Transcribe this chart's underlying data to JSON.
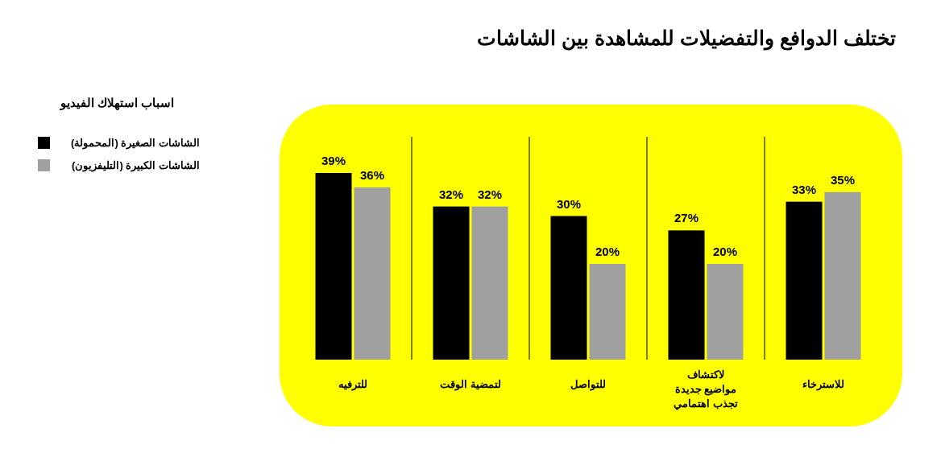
{
  "chart_data": {
    "type": "bar",
    "title": "تختلف الدوافع والتفضيلات للمشاهدة بين الشاشات",
    "legend_title": "اسباب استهلاك الفيديو",
    "legend": "top left",
    "categories": [
      "للترفيه",
      "لتمضية الوقت",
      "للتواصل",
      "لاكتشاف مواضيع جديدة تجذب اهتمامي",
      "للاسترخاء"
    ],
    "series": [
      {
        "name": "الشاشات الصغيرة (المحمولة)",
        "color": "#000000",
        "values": [
          39,
          32,
          30,
          27,
          33
        ],
        "value_labels": [
          "39%",
          "32%",
          "30%",
          "27%",
          "33%"
        ]
      },
      {
        "name": "الشاشات الكبيرة (التليفزيون)",
        "color": "#a0a0a0",
        "values": [
          36,
          32,
          20,
          20,
          35
        ],
        "value_labels": [
          "36%",
          "32%",
          "20%",
          "20%",
          "35%"
        ]
      }
    ]
  }
}
